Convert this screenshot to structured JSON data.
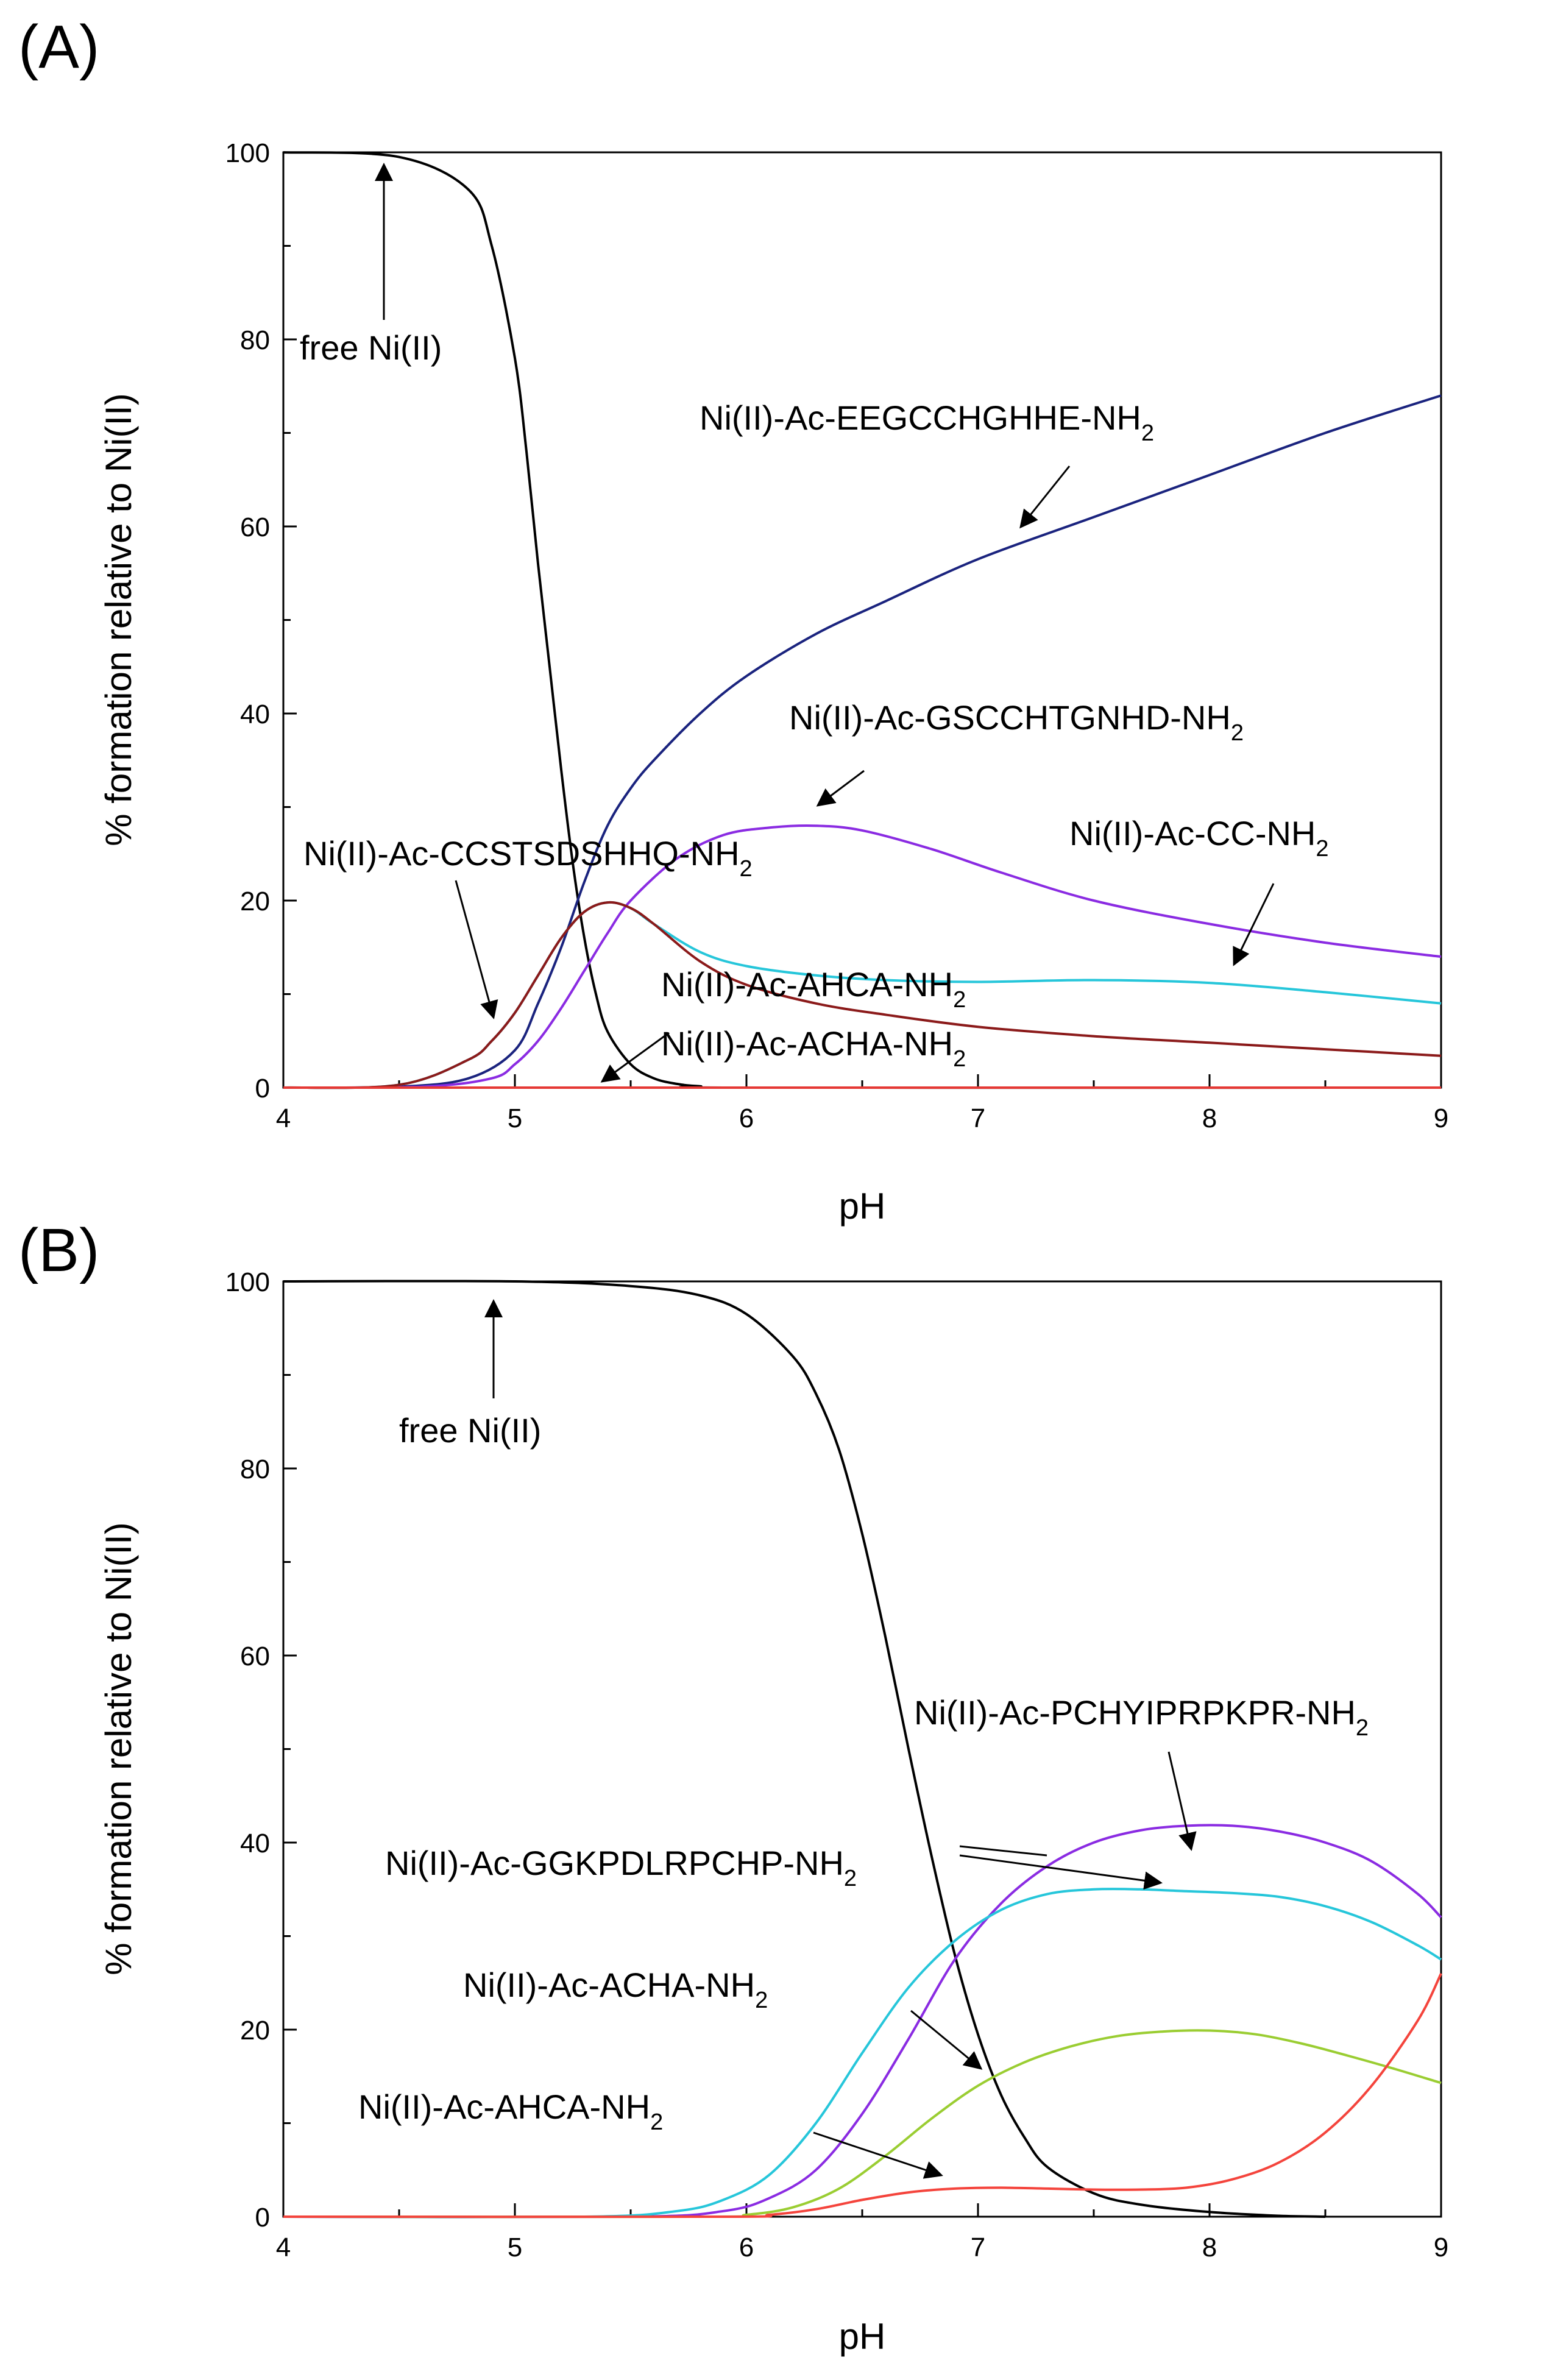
{
  "chart_data": [
    {
      "panel": "(A)",
      "type": "line",
      "xlabel": "pH",
      "ylabel": "% formation relative to Ni(II)",
      "xlim": [
        4,
        9
      ],
      "ylim": [
        0,
        100
      ],
      "xticks": [
        4,
        5,
        6,
        7,
        8,
        9
      ],
      "yticks": [
        0,
        20,
        40,
        60,
        80,
        100
      ],
      "series": [
        {
          "name": "free Ni(II)",
          "color": "#000000",
          "x": [
            4,
            4.5,
            4.8,
            4.9,
            5.0,
            5.05,
            5.1,
            5.15,
            5.2,
            5.25,
            5.3,
            5.35,
            5.4,
            5.5,
            5.6,
            5.7,
            5.8,
            6.0,
            9
          ],
          "y": [
            100,
            99.5,
            96,
            90,
            78,
            68,
            56,
            45,
            34,
            24,
            16,
            10,
            6,
            2.5,
            1,
            0.4,
            0.15,
            0,
            0
          ]
        },
        {
          "name": "Ni(II)-Ac-EEGCCHGHHE-NH2",
          "color": "#1a237e",
          "x": [
            4,
            4.5,
            4.8,
            5.0,
            5.1,
            5.2,
            5.3,
            5.4,
            5.5,
            5.6,
            5.8,
            6.0,
            6.3,
            6.6,
            7.0,
            7.5,
            8.0,
            8.5,
            9.0
          ],
          "y": [
            0,
            0.1,
            1,
            4,
            9,
            15,
            22,
            28,
            32,
            35,
            40,
            44,
            48.5,
            52,
            56.5,
            61,
            65.5,
            70,
            74
          ]
        },
        {
          "name": "Ni(II)-Ac-GSCCHTGNHD-NH2",
          "color": "#8a2be2",
          "x": [
            4,
            4.6,
            4.9,
            5.0,
            5.1,
            5.2,
            5.3,
            5.4,
            5.5,
            5.7,
            5.9,
            6.1,
            6.3,
            6.5,
            6.8,
            7.1,
            7.5,
            8.0,
            8.5,
            9.0
          ],
          "y": [
            0,
            0.1,
            1,
            2.5,
            5,
            8.5,
            12.5,
            16.5,
            20,
            24.5,
            27,
            27.8,
            28,
            27.5,
            25.5,
            23,
            20,
            17.5,
            15.5,
            14
          ]
        },
        {
          "name": "Ni(II)-Ac-CC-NH2",
          "color": "#26c6da",
          "x": [
            4,
            4.5,
            4.8,
            4.9,
            5.0,
            5.1,
            5.2,
            5.3,
            5.4,
            5.5,
            5.6,
            5.8,
            6.0,
            6.3,
            6.6,
            7.0,
            7.5,
            8.0,
            8.5,
            9.0
          ],
          "y": [
            0,
            0.3,
            3,
            5,
            8,
            12,
            16,
            18.8,
            19.8,
            19.2,
            17.5,
            14.5,
            13,
            12,
            11.5,
            11.3,
            11.5,
            11.2,
            10.2,
            9
          ]
        },
        {
          "name": "Ni(II)-Ac-CCSTSDSHHQ-NH2",
          "color": "#8b1a1a",
          "x": [
            4,
            4.5,
            4.8,
            4.9,
            5.0,
            5.1,
            5.2,
            5.3,
            5.4,
            5.5,
            5.6,
            5.8,
            6.0,
            6.3,
            6.6,
            7.0,
            7.5,
            8.0,
            8.5,
            9.0
          ],
          "y": [
            0,
            0.3,
            3,
            5,
            8,
            12,
            16,
            18.8,
            19.8,
            19.2,
            17.5,
            13.5,
            11,
            9,
            7.8,
            6.5,
            5.5,
            4.8,
            4.1,
            3.4
          ]
        },
        {
          "name": "Ni(II)-Ac-AHCA-NH2",
          "color": "#9acd32",
          "x": [
            4,
            9
          ],
          "y": [
            0,
            0
          ]
        },
        {
          "name": "Ni(II)-Ac-ACHA-NH2",
          "color": "#e53935",
          "x": [
            4,
            9
          ],
          "y": [
            0,
            0
          ]
        }
      ]
    },
    {
      "panel": "(B)",
      "type": "line",
      "xlabel": "pH",
      "ylabel": "% formation relative to Ni(II)",
      "xlim": [
        4,
        9
      ],
      "ylim": [
        0,
        100
      ],
      "xticks": [
        4,
        5,
        6,
        7,
        8,
        9
      ],
      "yticks": [
        0,
        20,
        40,
        60,
        80,
        100
      ],
      "series": [
        {
          "name": "free Ni(II)",
          "color": "#000000",
          "x": [
            4,
            5.0,
            5.5,
            5.8,
            6.0,
            6.2,
            6.3,
            6.4,
            6.5,
            6.6,
            6.7,
            6.8,
            6.9,
            7.0,
            7.1,
            7.2,
            7.3,
            7.5,
            7.7,
            8.0,
            8.3,
            8.5
          ],
          "y": [
            100,
            100,
            99.5,
            98.5,
            96.5,
            92,
            88,
            82,
            73,
            62,
            50,
            38.5,
            28,
            19.5,
            13,
            8.5,
            5.3,
            2.5,
            1.3,
            0.5,
            0.1,
            0
          ]
        },
        {
          "name": "Ni(II)-Ac-PCHYIPRPKPR-NH2",
          "color": "#8a2be2",
          "x": [
            4,
            5.5,
            5.9,
            6.1,
            6.3,
            6.5,
            6.7,
            6.9,
            7.1,
            7.3,
            7.5,
            7.7,
            7.9,
            8.1,
            8.3,
            8.5,
            8.7,
            8.9,
            9.0
          ],
          "y": [
            0,
            0,
            0.6,
            2,
            5,
            11,
            19,
            27.5,
            33.5,
            37.5,
            40,
            41.3,
            41.8,
            41.8,
            41.2,
            40,
            38,
            34.5,
            32
          ]
        },
        {
          "name": "Ni(II)-Ac-GGKPDLRPCHP-NH2",
          "color": "#26c6da",
          "x": [
            4,
            5.3,
            5.7,
            5.9,
            6.1,
            6.3,
            6.5,
            6.7,
            6.9,
            7.1,
            7.3,
            7.5,
            7.7,
            7.9,
            8.1,
            8.3,
            8.5,
            8.7,
            8.9,
            9.0
          ],
          "y": [
            0,
            0,
            0.6,
            1.8,
            4.5,
            10,
            17.5,
            24.5,
            29.5,
            32.8,
            34.5,
            35,
            35,
            34.8,
            34.6,
            34.2,
            33.2,
            31.5,
            29,
            27.5
          ]
        },
        {
          "name": "Ni(II)-Ac-ACHA-NH2",
          "color": "#9acd32",
          "x": [
            4,
            5.8,
            6.0,
            6.2,
            6.4,
            6.6,
            6.8,
            7.0,
            7.2,
            7.4,
            7.6,
            7.8,
            8.0,
            8.2,
            8.4,
            8.6,
            8.8,
            9.0
          ],
          "y": [
            0,
            0,
            0.2,
            1,
            3,
            6.5,
            10.5,
            14,
            16.5,
            18.2,
            19.3,
            19.8,
            19.9,
            19.5,
            18.5,
            17.2,
            15.8,
            14.3
          ]
        },
        {
          "name": "Ni(II)-Ac-AHCA-NH2",
          "color": "#f4443c",
          "x": [
            4,
            5.9,
            6.1,
            6.3,
            6.5,
            6.7,
            6.9,
            7.1,
            7.3,
            7.5,
            7.7,
            7.9,
            8.1,
            8.3,
            8.5,
            8.7,
            8.9,
            9.0
          ],
          "y": [
            0,
            0,
            0.2,
            0.8,
            1.8,
            2.6,
            3,
            3.1,
            3,
            2.9,
            2.9,
            3.1,
            4,
            5.8,
            9,
            14,
            21,
            26
          ]
        }
      ]
    }
  ],
  "annotations": {
    "a": {
      "free_ni": "free Ni(II)",
      "eeg": {
        "main": "Ni(II)-Ac-EEGCCHGHHE-NH",
        "sub": "2"
      },
      "gsc": {
        "main": "Ni(II)-Ac-GSCCHTGNHD-NH",
        "sub": "2"
      },
      "cc": {
        "main": "Ni(II)-Ac-CC-NH",
        "sub": "2"
      },
      "ccs": {
        "main": "Ni(II)-Ac-CCSTSDSHHQ-NH",
        "sub": "2"
      },
      "ahca": {
        "main": "Ni(II)-Ac-AHCA-NH",
        "sub": "2"
      },
      "acha": {
        "main": "Ni(II)-Ac-ACHA-NH",
        "sub": "2"
      }
    },
    "b": {
      "free_ni": "free Ni(II)",
      "pch": {
        "main": "Ni(II)-Ac-PCHYIPRPKPR-NH",
        "sub": "2"
      },
      "ggk": {
        "main": "Ni(II)-Ac-GGKPDLRPCHP-NH",
        "sub": "2"
      },
      "acha": {
        "main": "Ni(II)-Ac-ACHA-NH",
        "sub": "2"
      },
      "ahca": {
        "main": "Ni(II)-Ac-AHCA-NH",
        "sub": "2"
      }
    }
  }
}
